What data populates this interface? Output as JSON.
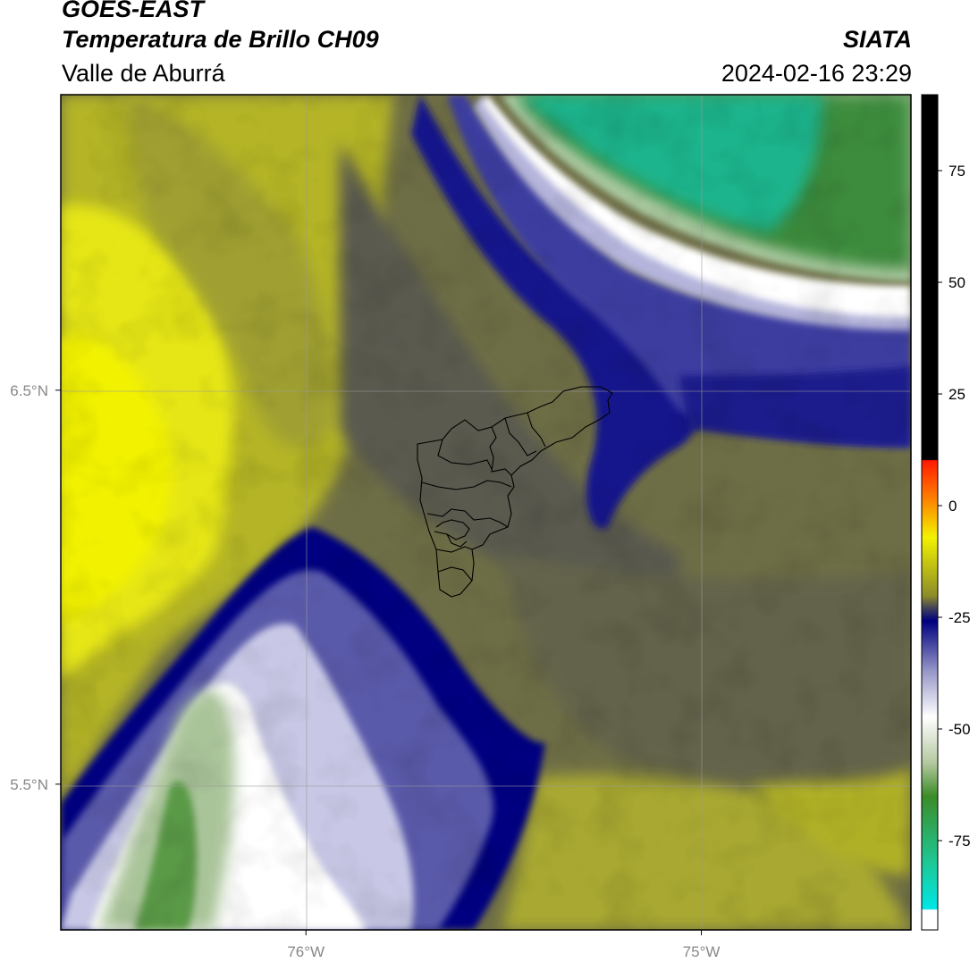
{
  "header": {
    "line1": "GOES-EAST",
    "line2": "Temperatura de Brillo CH09",
    "line3": "Valle de Aburrá",
    "agency": "SIATA",
    "datetime": "2024-02-16 23:29"
  },
  "map": {
    "lat_ticks": [
      {
        "value": 6.5,
        "label": "6.5°N"
      },
      {
        "value": 5.5,
        "label": "5.5°N"
      }
    ],
    "lon_ticks": [
      {
        "value": -76,
        "label": "76°W"
      },
      {
        "value": -75,
        "label": "75°W"
      }
    ],
    "lon_range": [
      -76.62,
      -74.47
    ],
    "lat_range": [
      5.13,
      7.25
    ],
    "gridlines": true,
    "overlay": "Valle de Aburrá municipal boundaries"
  },
  "colorbar": {
    "range": [
      -95,
      92
    ],
    "ticks": [
      75,
      50,
      25,
      0,
      -25,
      -50,
      -75
    ],
    "colors": {
      "black": "#000000",
      "red": "#ff1a00",
      "orange": "#ff8c00",
      "yellow": "#f2f200",
      "olive": "#8c8c2a",
      "slate": "#40405a",
      "navy": "#000080",
      "lavender": "#b4b4dc",
      "white": "#ffffff",
      "pale_green": "#b4c8a0",
      "green": "#3c8c28",
      "teal": "#1ec896",
      "cyan": "#00e6e6"
    }
  }
}
